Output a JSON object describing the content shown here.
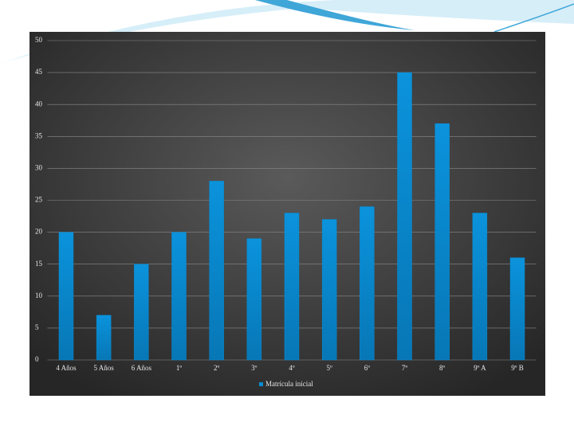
{
  "chart_data": {
    "type": "bar",
    "categories": [
      "4 Años",
      "5 Años",
      "6 Años",
      "1º",
      "2º",
      "3º",
      "4º",
      "5º",
      "6º",
      "7º",
      "8º",
      "9º A",
      "9º B"
    ],
    "series": [
      {
        "name": "Matrícula inicial",
        "color": "#0a8bd1",
        "values": [
          20,
          7,
          15,
          20,
          28,
          19,
          23,
          22,
          24,
          45,
          37,
          23,
          16
        ]
      }
    ],
    "ylim": [
      0,
      50
    ],
    "yticks": [
      0,
      5,
      10,
      15,
      20,
      25,
      30,
      35,
      40,
      45,
      50
    ],
    "grid": true,
    "legend": "bottom"
  }
}
